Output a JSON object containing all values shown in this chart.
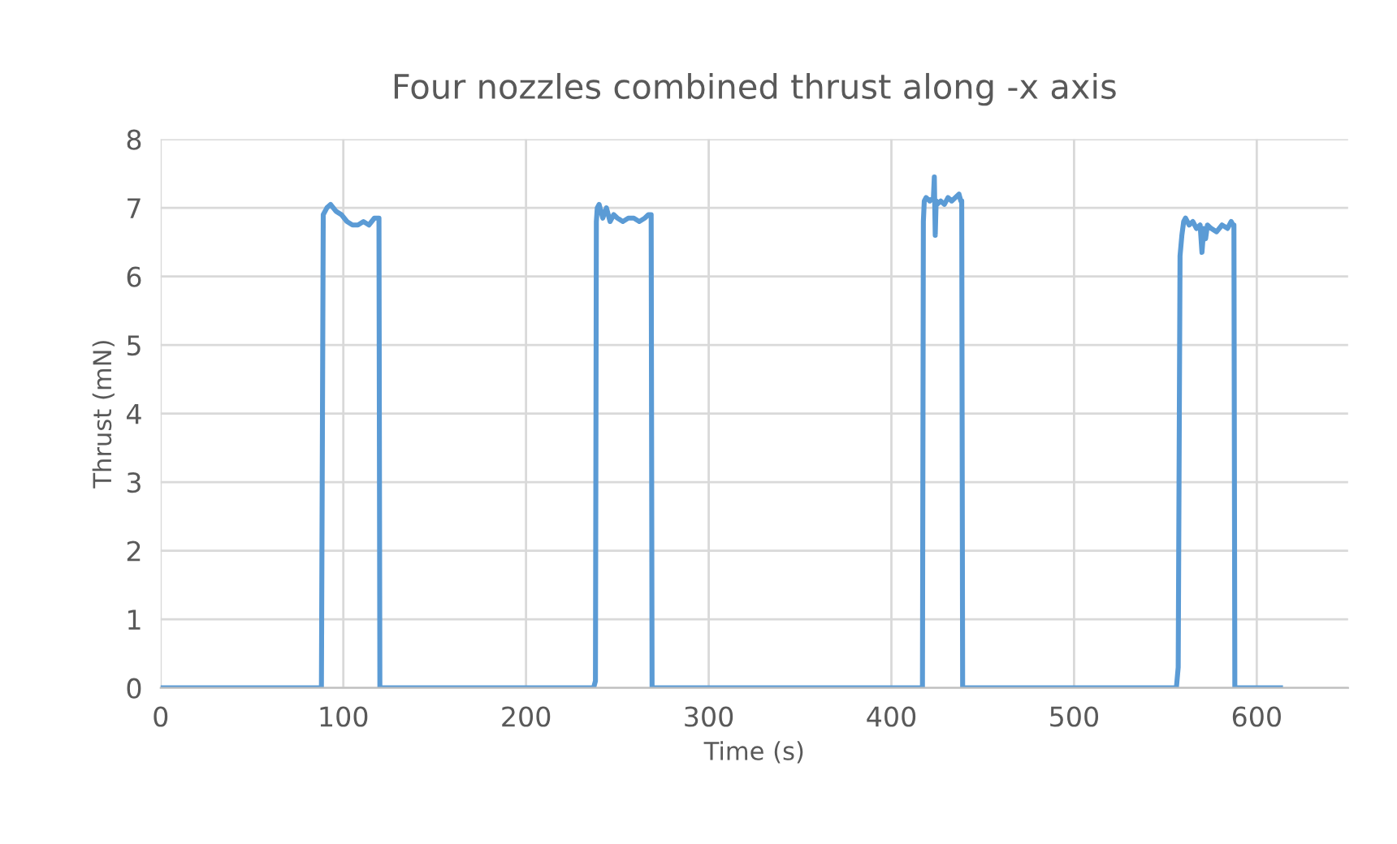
{
  "chart_data": {
    "type": "line",
    "title": "Four nozzles combined thrust along -x axis",
    "xlabel": "Time (s)",
    "ylabel": "Thrust (mN)",
    "series": [
      {
        "color": "#5b9bd5",
        "x": [
          0,
          88,
          89,
          91,
          93,
          96,
          99,
          102,
          105,
          108,
          111,
          114,
          117,
          119,
          119.5,
          120,
          200,
          237,
          238,
          238.5,
          239,
          240,
          242,
          244,
          246,
          248,
          250,
          253,
          256,
          259,
          262,
          265,
          267,
          268,
          268.5,
          269,
          300,
          400,
          417,
          417.5,
          418,
          419,
          421,
          423,
          423.5,
          424,
          424.5,
          425,
          427,
          429,
          431,
          433,
          435,
          437,
          438,
          438.5,
          439,
          500,
          556,
          557,
          558,
          559,
          560,
          561,
          563,
          565,
          567,
          569,
          570,
          571,
          572,
          573,
          575,
          578,
          581,
          584,
          586,
          587,
          587.5,
          588,
          613
        ],
        "values": [
          0,
          0,
          6.9,
          7.0,
          7.05,
          6.95,
          6.9,
          6.8,
          6.75,
          6.75,
          6.8,
          6.75,
          6.85,
          6.85,
          6.85,
          0,
          0,
          0,
          0.1,
          6.8,
          7.0,
          7.05,
          6.85,
          7.0,
          6.8,
          6.9,
          6.85,
          6.8,
          6.85,
          6.85,
          6.8,
          6.85,
          6.9,
          6.9,
          6.9,
          0,
          0,
          0,
          0,
          6.8,
          7.1,
          7.15,
          7.1,
          7.15,
          7.45,
          6.6,
          7.1,
          7.05,
          7.1,
          7.05,
          7.15,
          7.1,
          7.15,
          7.2,
          7.1,
          7.1,
          0,
          0,
          0,
          0.3,
          6.3,
          6.6,
          6.8,
          6.85,
          6.75,
          6.8,
          6.7,
          6.75,
          6.35,
          6.7,
          6.55,
          6.75,
          6.7,
          6.65,
          6.75,
          6.7,
          6.8,
          6.75,
          6.75,
          0,
          0
        ]
      }
    ],
    "xlim": [
      0,
      650
    ],
    "xticks": [
      0,
      100,
      200,
      300,
      400,
      500,
      600
    ],
    "ylim": [
      0,
      8
    ],
    "yticks": [
      0,
      1,
      2,
      3,
      4,
      5,
      6,
      7,
      8
    ],
    "grid": true,
    "line_style": "solid",
    "marker": "none"
  }
}
